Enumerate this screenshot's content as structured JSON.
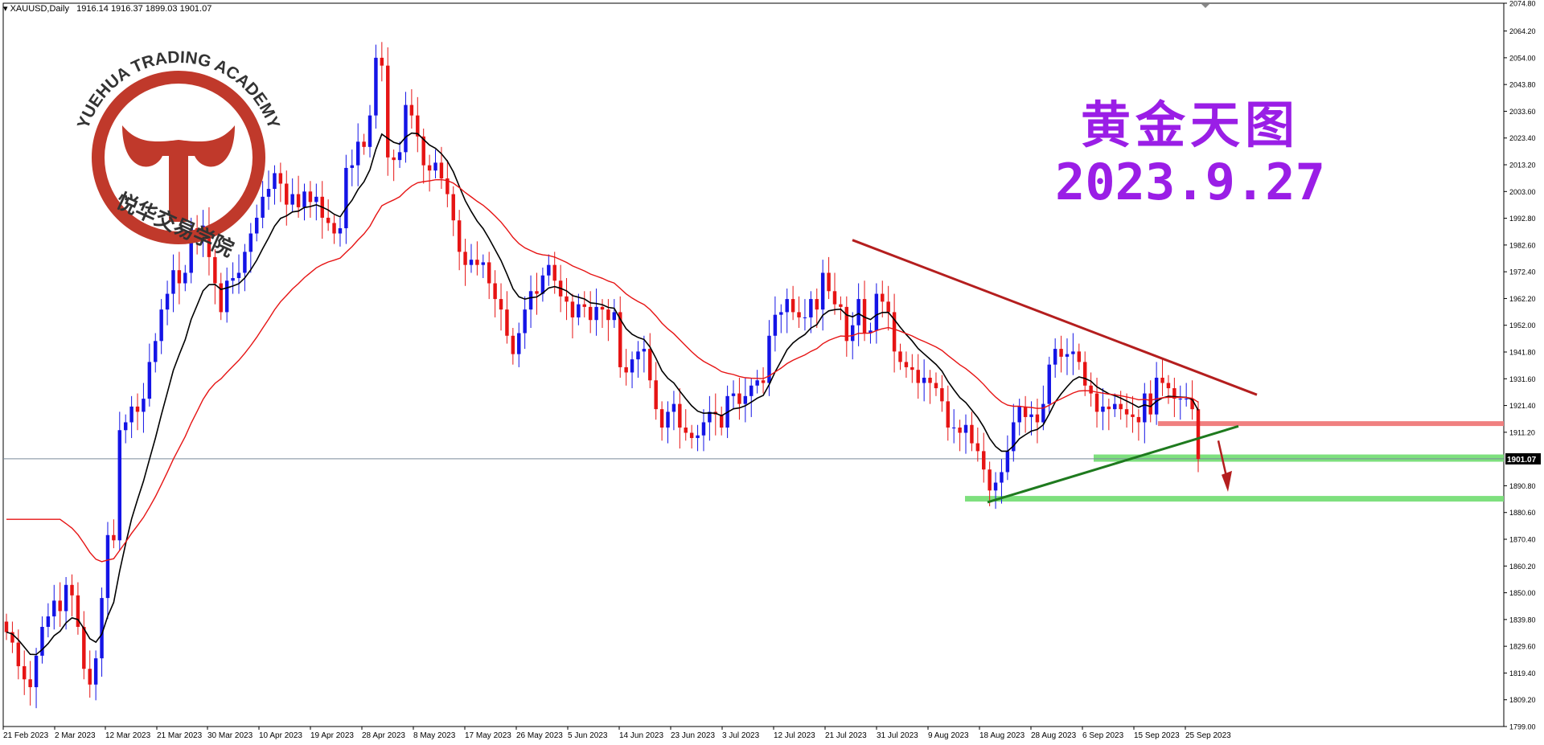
{
  "header": {
    "symbol": "XAUUSD,Daily",
    "ohlc": "1916.14 1916.37 1899.03 1901.07"
  },
  "watermark": {
    "title": "黄金天图",
    "date": "2023.9.27"
  },
  "logo": {
    "arc_text": "YUEHUA TRADING ACADEMY",
    "cn_text": "悦华交易学院"
  },
  "colors": {
    "bull": "#1414e6",
    "bear": "#e61414",
    "ma_fast": "#000000",
    "ma_slow": "#e61414",
    "trend_down": "#b41e1e",
    "trend_up": "#1e7a1e",
    "resistance_zone": "#f08080",
    "support_zone": "#7ee07e",
    "logo": "#c0392b",
    "price_line": "#7a8a9a"
  },
  "chart_data": {
    "type": "candlestick",
    "title": "XAUUSD,Daily",
    "current_price": "1901.07",
    "ylim": [
      1799.0,
      2074.8
    ],
    "y_ticks": [
      "2074.80",
      "2064.20",
      "2054.00",
      "2043.80",
      "2033.60",
      "2023.40",
      "2013.20",
      "2003.00",
      "1992.80",
      "1982.60",
      "1972.40",
      "1962.20",
      "1952.00",
      "1941.80",
      "1931.60",
      "1921.40",
      "1911.20",
      "1901.07",
      "1890.80",
      "1880.60",
      "1870.40",
      "1860.20",
      "1850.00",
      "1839.80",
      "1829.60",
      "1819.40",
      "1809.20",
      "1799.00"
    ],
    "x_ticks": [
      "21 Feb 2023",
      "2 Mar 2023",
      "12 Mar 2023",
      "21 Mar 2023",
      "30 Mar 2023",
      "10 Apr 2023",
      "19 Apr 2023",
      "28 Apr 2023",
      "8 May 2023",
      "17 May 2023",
      "26 May 2023",
      "5 Jun 2023",
      "14 Jun 2023",
      "23 Jun 2023",
      "3 Jul 2023",
      "12 Jul 2023",
      "21 Jul 2023",
      "31 Jul 2023",
      "9 Aug 2023",
      "18 Aug 2023",
      "28 Aug 2023",
      "6 Sep 2023",
      "15 Sep 2023",
      "25 Sep 2023"
    ],
    "closes": [
      1835,
      1831,
      1822,
      1817,
      1814,
      1826,
      1837,
      1841,
      1847,
      1843,
      1853,
      1849,
      1837,
      1821,
      1815,
      1825,
      1848,
      1872,
      1870,
      1912,
      1915,
      1921,
      1919,
      1924,
      1938,
      1946,
      1958,
      1964,
      1973,
      1968,
      1972,
      1989,
      1984,
      1990,
      1978,
      1968,
      1957,
      1969,
      1970,
      1972,
      1980,
      1987,
      1993,
      2001,
      2004,
      2010,
      2006,
      1998,
      2002,
      1997,
      2003,
      1999,
      2001,
      1993,
      1991,
      1987,
      1989,
      2012,
      2013,
      2022,
      2020,
      2032,
      2054,
      2051,
      2016,
      2015,
      2018,
      2036,
      2032,
      2024,
      2013,
      2011,
      2014,
      2008,
      2002,
      1992,
      1980,
      1975,
      1977,
      1975,
      1976,
      1968,
      1962,
      1958,
      1948,
      1941,
      1949,
      1958,
      1965,
      1964,
      1971,
      1975,
      1969,
      1963,
      1961,
      1955,
      1960,
      1959,
      1954,
      1959,
      1958,
      1954,
      1957,
      1936,
      1934,
      1939,
      1942,
      1943,
      1931,
      1920,
      1913,
      1919,
      1922,
      1913,
      1911,
      1909,
      1910,
      1915,
      1919,
      1918,
      1913,
      1925,
      1926,
      1922,
      1925,
      1929,
      1931,
      1930,
      1948,
      1956,
      1957,
      1962,
      1957,
      1955,
      1955,
      1962,
      1958,
      1972,
      1965,
      1960,
      1959,
      1946,
      1952,
      1962,
      1949,
      1950,
      1964,
      1961,
      1957,
      1942,
      1938,
      1936,
      1935,
      1930,
      1932,
      1930,
      1928,
      1923,
      1913,
      1913,
      1911,
      1914,
      1907,
      1904,
      1897,
      1889,
      1892,
      1896,
      1904,
      1915,
      1921,
      1917,
      1918,
      1915,
      1922,
      1937,
      1943,
      1940,
      1941,
      1942,
      1938,
      1929,
      1926,
      1919,
      1921,
      1920,
      1922,
      1920,
      1918,
      1917,
      1915,
      1926,
      1918,
      1932,
      1930,
      1928,
      1924,
      1924,
      1924,
      1920,
      1901
    ]
  }
}
